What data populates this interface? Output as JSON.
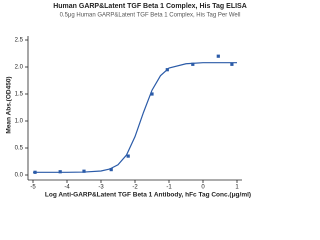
{
  "chart_data": {
    "type": "scatter",
    "title": "Human GARP&Latent TGF Beta 1 Complex, His Tag ELISA",
    "subtitle": "0.5μg Human GARP&Latent TGF Beta 1 Complex, His Tag Per Well",
    "x_label": "Log Anti-GARP&Latent TGF Beta 1 Antibody, hFc Tag Conc.(μg/ml)",
    "y_label": "Mean Abs.(OD450)",
    "color": "#2b5ba8",
    "points": {
      "x": [
        -4.94,
        -4.2,
        -3.5,
        -2.7,
        -2.2,
        -1.5,
        -1.05,
        -0.3,
        0.45,
        0.85
      ],
      "values": [
        0.05,
        0.06,
        0.07,
        0.1,
        0.35,
        1.5,
        1.95,
        2.05,
        2.2,
        2.05
      ]
    },
    "curve": {
      "x": [
        -5,
        -4.5,
        -4,
        -3.5,
        -3,
        -2.75,
        -2.5,
        -2.25,
        -2,
        -1.75,
        -1.5,
        -1.25,
        -1,
        -0.5,
        0,
        0.5,
        1
      ],
      "values": [
        0.05,
        0.05,
        0.05,
        0.054,
        0.074,
        0.109,
        0.19,
        0.37,
        0.71,
        1.16,
        1.57,
        1.84,
        1.98,
        2.06,
        2.08,
        2.08,
        2.08
      ]
    },
    "xlim": [
      -5,
      1
    ],
    "xticks": [
      -5,
      -4,
      -3,
      -2,
      -1,
      0,
      1
    ],
    "ylim": [
      0,
      2.5
    ],
    "yticks": [
      {
        "value": 0,
        "label": "0.0"
      },
      0.5,
      {
        "value": 1,
        "label": "1.0"
      },
      1.5,
      {
        "value": 2,
        "label": "2.0"
      },
      2.5
    ]
  }
}
